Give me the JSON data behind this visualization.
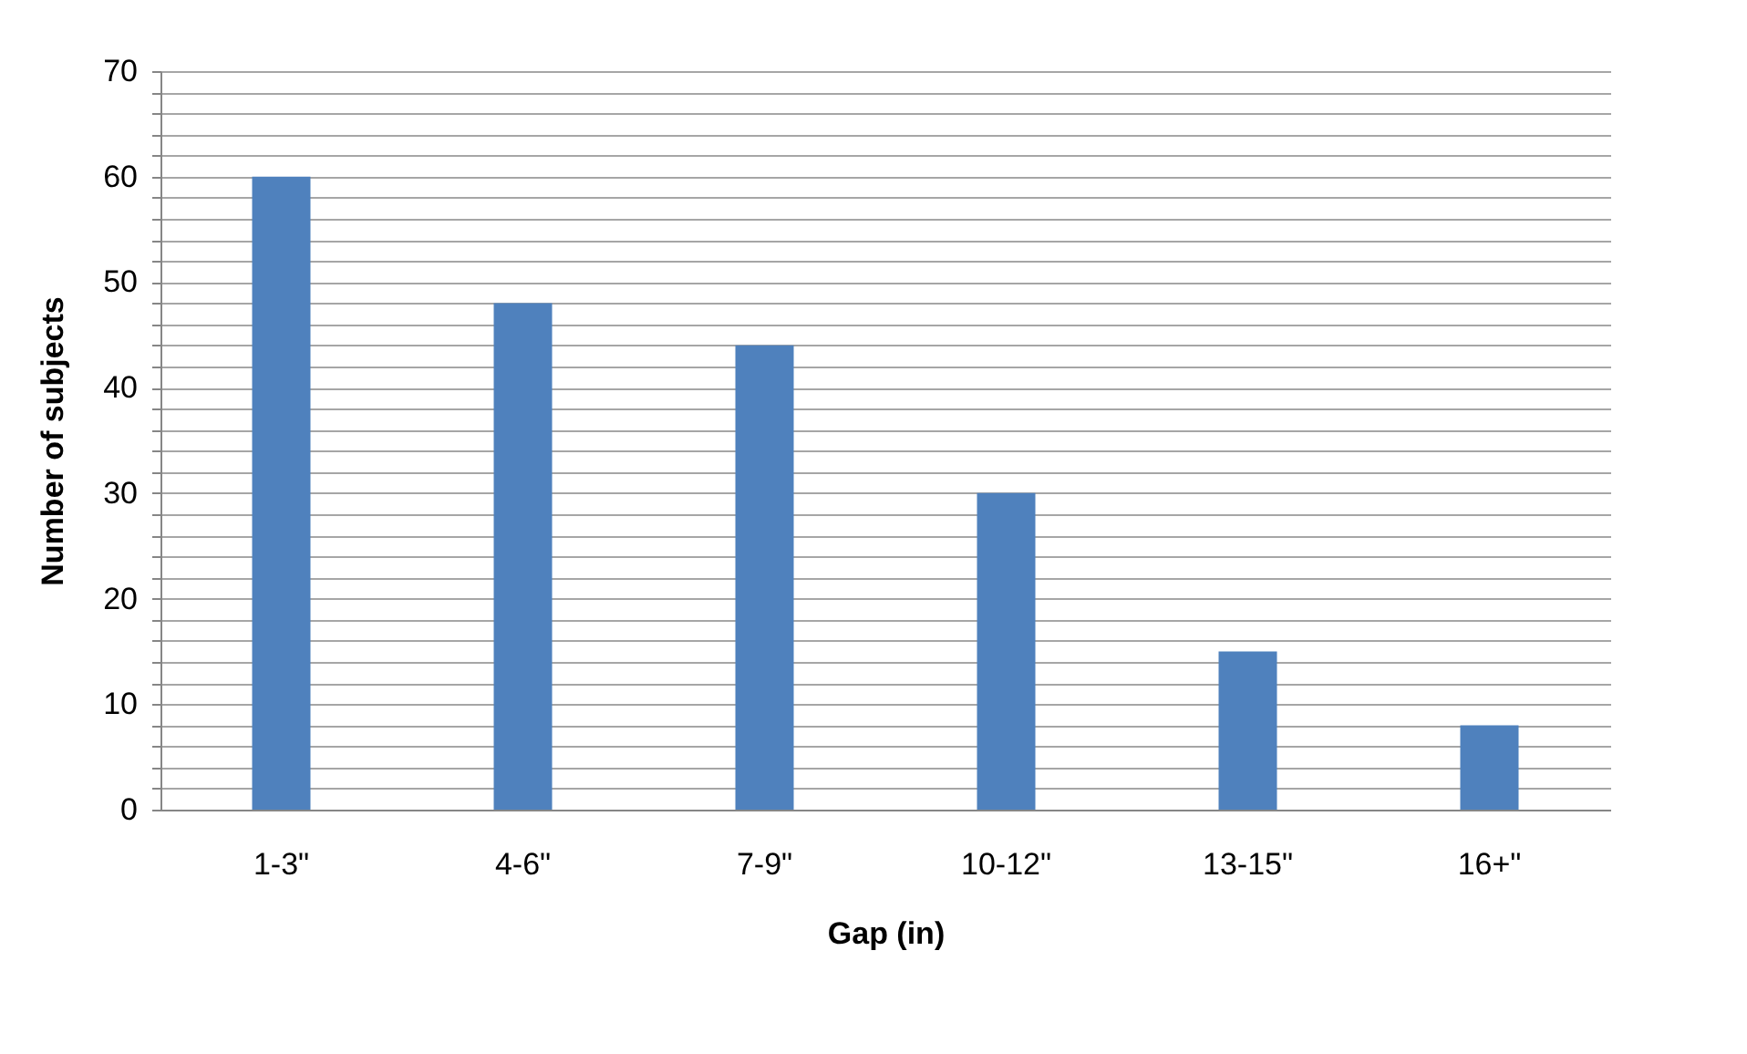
{
  "chart_data": {
    "type": "bar",
    "xlabel": "Gap (in)",
    "ylabel": "Number of subjects",
    "categories": [
      "1-3\"",
      "4-6\"",
      "7-9\"",
      "10-12\"",
      "13-15\"",
      "16+\""
    ],
    "values": [
      60,
      48,
      44,
      30,
      15,
      8
    ],
    "color": "#4f81bd",
    "ylim": [
      0,
      70
    ],
    "yticks": [
      0,
      {
        "value": 2,
        "label": null
      },
      {
        "value": 4,
        "label": null
      },
      {
        "value": 6,
        "label": null
      },
      {
        "value": 8,
        "label": null
      },
      10,
      {
        "value": 12,
        "label": null
      },
      {
        "value": 14,
        "label": null
      },
      {
        "value": 16,
        "label": null
      },
      {
        "value": 18,
        "label": null
      },
      20,
      {
        "value": 22,
        "label": null
      },
      {
        "value": 24,
        "label": null
      },
      {
        "value": 26,
        "label": null
      },
      {
        "value": 28,
        "label": null
      },
      30,
      {
        "value": 32,
        "label": null
      },
      {
        "value": 34,
        "label": null
      },
      {
        "value": 36,
        "label": null
      },
      {
        "value": 38,
        "label": null
      },
      40,
      {
        "value": 42,
        "label": null
      },
      {
        "value": 44,
        "label": null
      },
      {
        "value": 46,
        "label": null
      },
      {
        "value": 48,
        "label": null
      },
      50,
      {
        "value": 52,
        "label": null
      },
      {
        "value": 54,
        "label": null
      },
      {
        "value": 56,
        "label": null
      },
      {
        "value": 58,
        "label": null
      },
      60,
      {
        "value": 62,
        "label": null
      },
      {
        "value": 64,
        "label": null
      },
      {
        "value": 66,
        "label": null
      },
      {
        "value": 68,
        "label": null
      },
      70
    ],
    "grid": true
  }
}
